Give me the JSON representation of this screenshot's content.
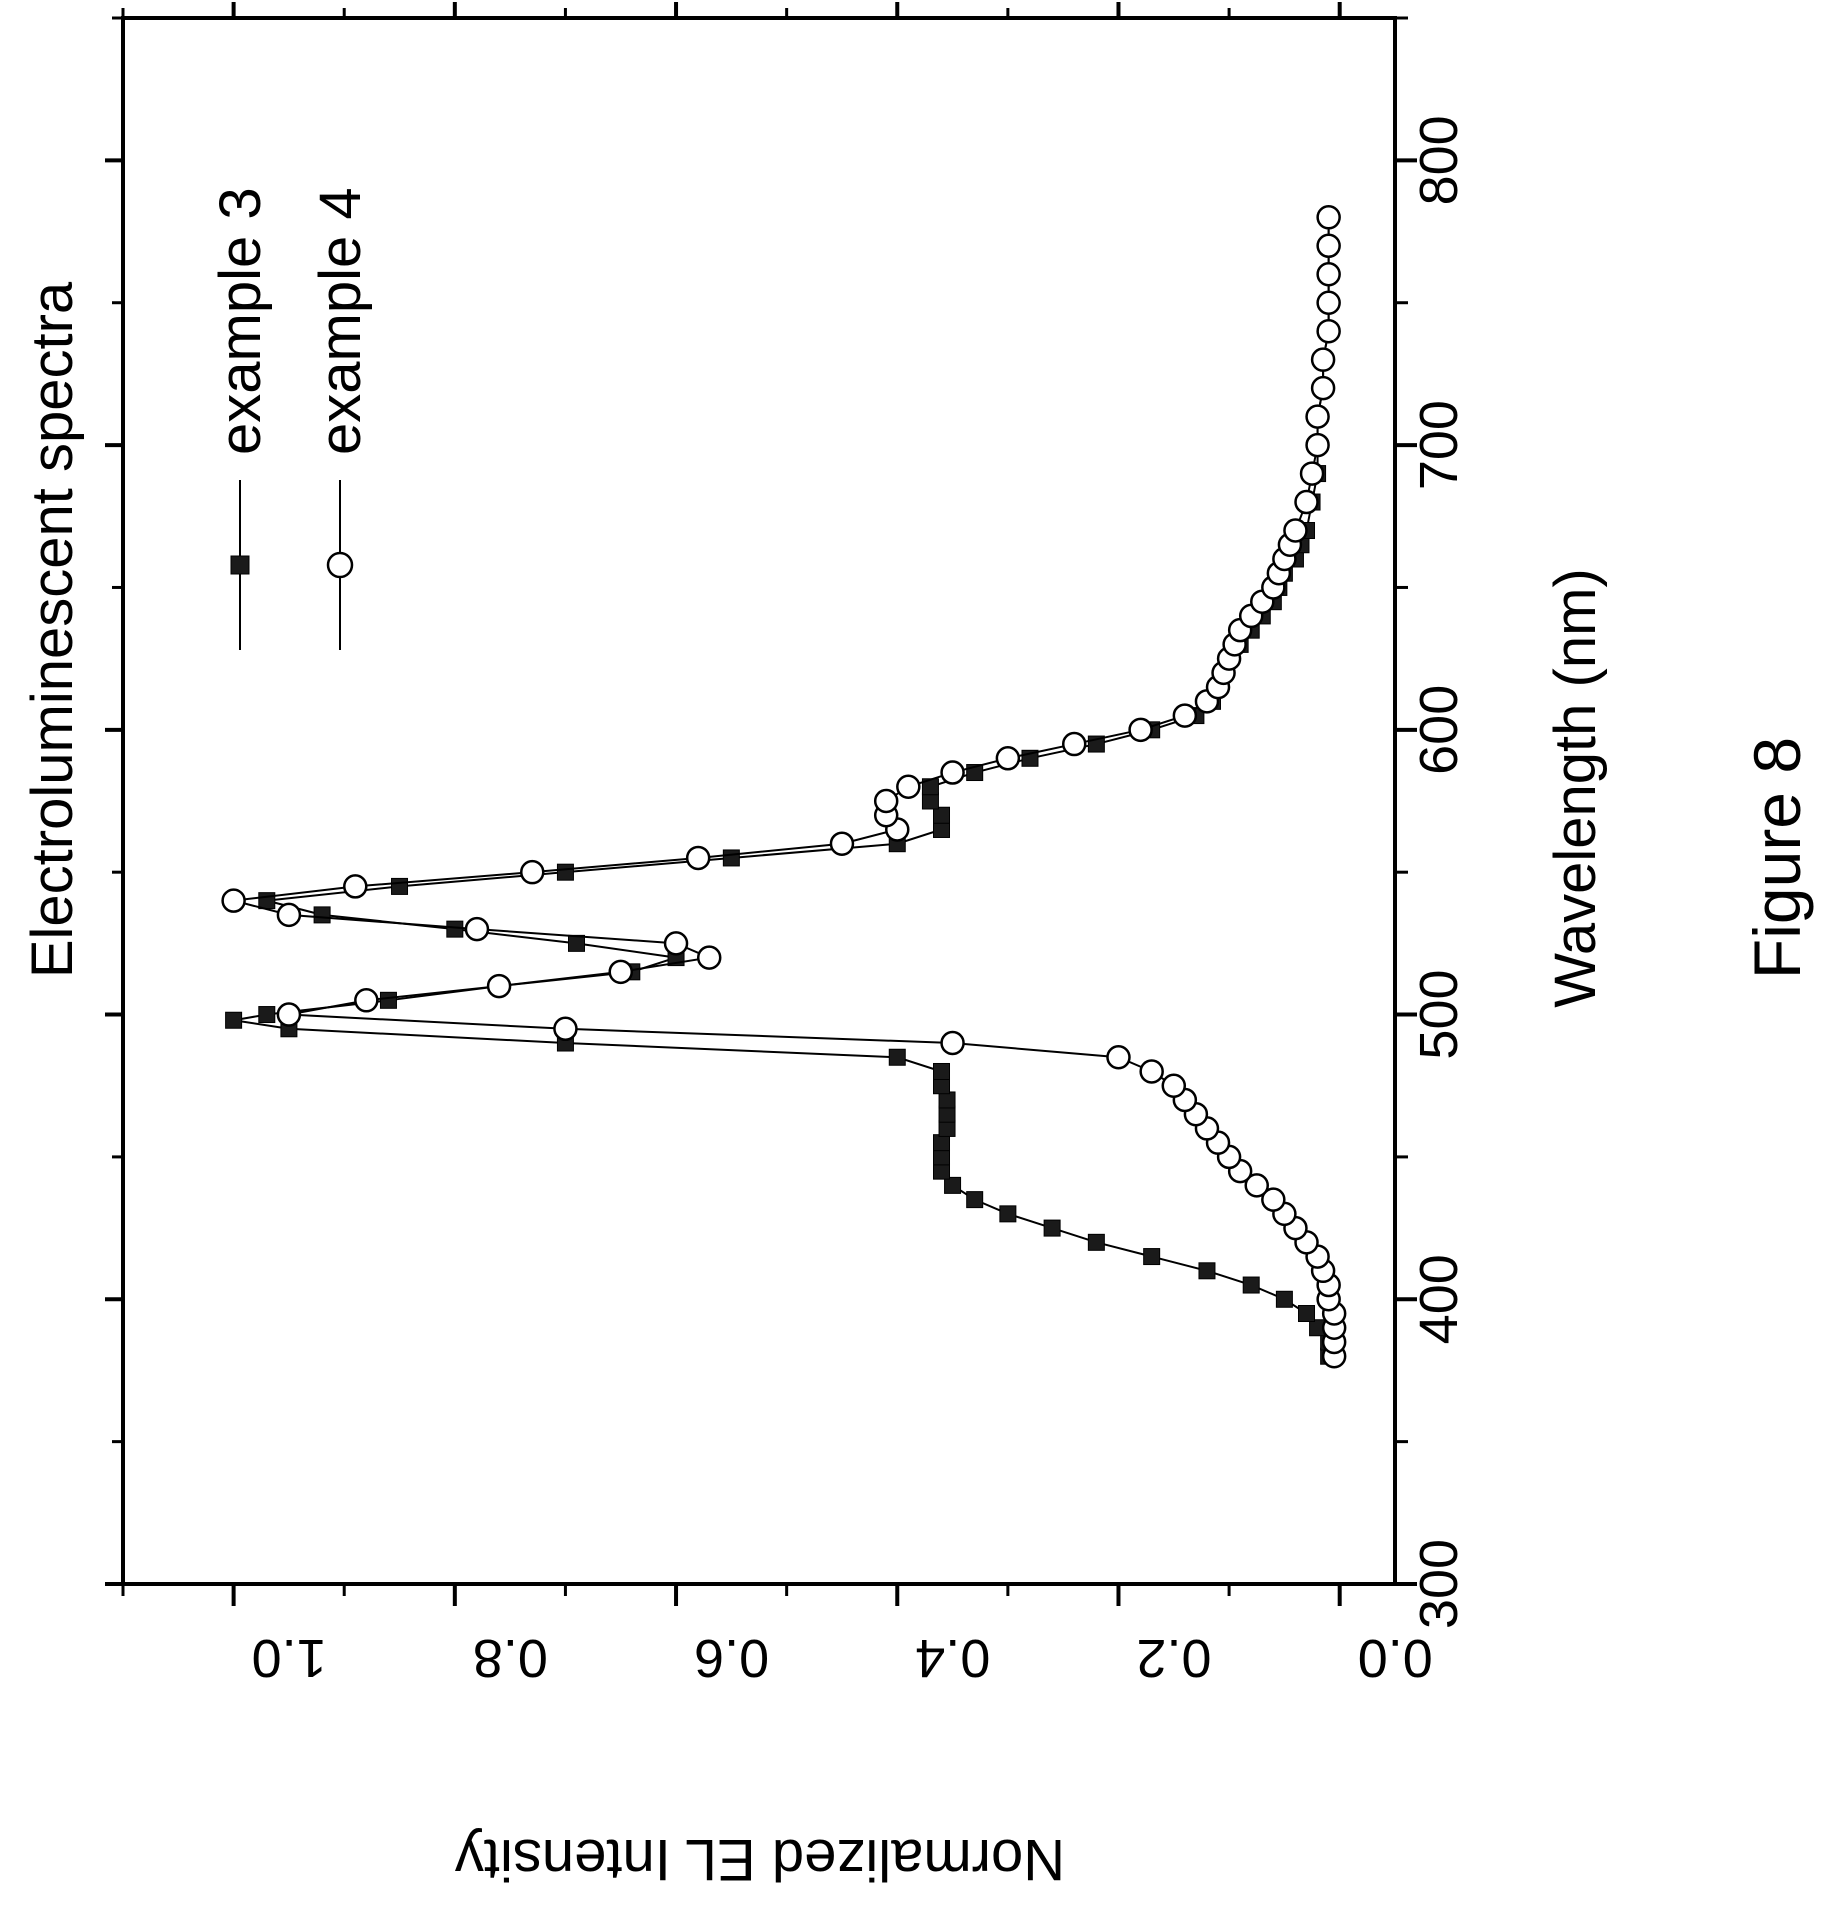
{
  "chart_data": {
    "type": "line",
    "title": "Electroluminescent spectra",
    "xlabel": "Wavelength (nm)",
    "ylabel": "Normalized EL Intensity",
    "caption": "Figure 8",
    "xlim": [
      300,
      850
    ],
    "ylim": [
      -0.05,
      1.1
    ],
    "x_ticks": [
      "300",
      "400",
      "500",
      "600",
      "700",
      "800"
    ],
    "y_ticks": [
      "0.0",
      "0.2",
      "0.4",
      "0.6",
      "0.8",
      "1.0"
    ],
    "orientation": "rotated 90 degrees clockwise on the page",
    "grid": false,
    "legend_position": "top-right",
    "series": [
      {
        "name": "example 3",
        "marker": "filled-square",
        "x": [
          380,
          385,
          390,
          395,
          400,
          405,
          410,
          415,
          420,
          425,
          430,
          435,
          440,
          445,
          450,
          455,
          460,
          465,
          470,
          475,
          480,
          485,
          490,
          495,
          498,
          500,
          505,
          510,
          515,
          520,
          525,
          530,
          535,
          540,
          545,
          550,
          555,
          560,
          565,
          570,
          575,
          580,
          585,
          590,
          595,
          600,
          605,
          610,
          615,
          620,
          625,
          630,
          635,
          640,
          645,
          650,
          655,
          660,
          665,
          670,
          680,
          690,
          700,
          710,
          720,
          730,
          740,
          750,
          760,
          770,
          780
        ],
        "y": [
          0.01,
          0.01,
          0.02,
          0.03,
          0.05,
          0.08,
          0.12,
          0.17,
          0.22,
          0.26,
          0.3,
          0.33,
          0.35,
          0.36,
          0.36,
          0.36,
          0.355,
          0.355,
          0.355,
          0.36,
          0.36,
          0.4,
          0.7,
          0.95,
          1.0,
          0.97,
          0.86,
          0.76,
          0.64,
          0.6,
          0.69,
          0.8,
          0.92,
          0.97,
          0.85,
          0.7,
          0.55,
          0.4,
          0.36,
          0.36,
          0.37,
          0.37,
          0.33,
          0.28,
          0.22,
          0.17,
          0.13,
          0.115,
          0.11,
          0.105,
          0.1,
          0.09,
          0.08,
          0.07,
          0.06,
          0.055,
          0.05,
          0.04,
          0.035,
          0.03,
          0.025,
          0.02,
          0.02,
          0.02,
          0.015,
          0.015,
          0.01,
          0.01,
          0.01,
          0.01,
          0.01
        ]
      },
      {
        "name": "example 4",
        "marker": "open-circle",
        "x": [
          380,
          385,
          390,
          395,
          400,
          405,
          410,
          415,
          420,
          425,
          430,
          435,
          440,
          445,
          450,
          455,
          460,
          465,
          470,
          475,
          480,
          485,
          490,
          495,
          500,
          505,
          510,
          515,
          520,
          525,
          530,
          535,
          540,
          545,
          550,
          555,
          560,
          565,
          570,
          575,
          580,
          585,
          590,
          595,
          600,
          605,
          610,
          615,
          620,
          625,
          630,
          635,
          640,
          645,
          650,
          655,
          660,
          665,
          670,
          680,
          690,
          700,
          710,
          720,
          730,
          740,
          750,
          760,
          770,
          780
        ],
        "y": [
          0.005,
          0.005,
          0.005,
          0.005,
          0.01,
          0.01,
          0.015,
          0.02,
          0.03,
          0.04,
          0.05,
          0.06,
          0.075,
          0.09,
          0.1,
          0.11,
          0.12,
          0.13,
          0.14,
          0.15,
          0.17,
          0.2,
          0.35,
          0.7,
          0.95,
          0.88,
          0.76,
          0.65,
          0.57,
          0.6,
          0.78,
          0.95,
          1.0,
          0.89,
          0.73,
          0.58,
          0.45,
          0.4,
          0.41,
          0.41,
          0.39,
          0.35,
          0.3,
          0.24,
          0.18,
          0.14,
          0.12,
          0.11,
          0.105,
          0.1,
          0.095,
          0.09,
          0.08,
          0.07,
          0.06,
          0.055,
          0.05,
          0.045,
          0.04,
          0.03,
          0.025,
          0.02,
          0.02,
          0.015,
          0.015,
          0.01,
          0.01,
          0.01,
          0.01,
          0.01
        ]
      }
    ]
  }
}
